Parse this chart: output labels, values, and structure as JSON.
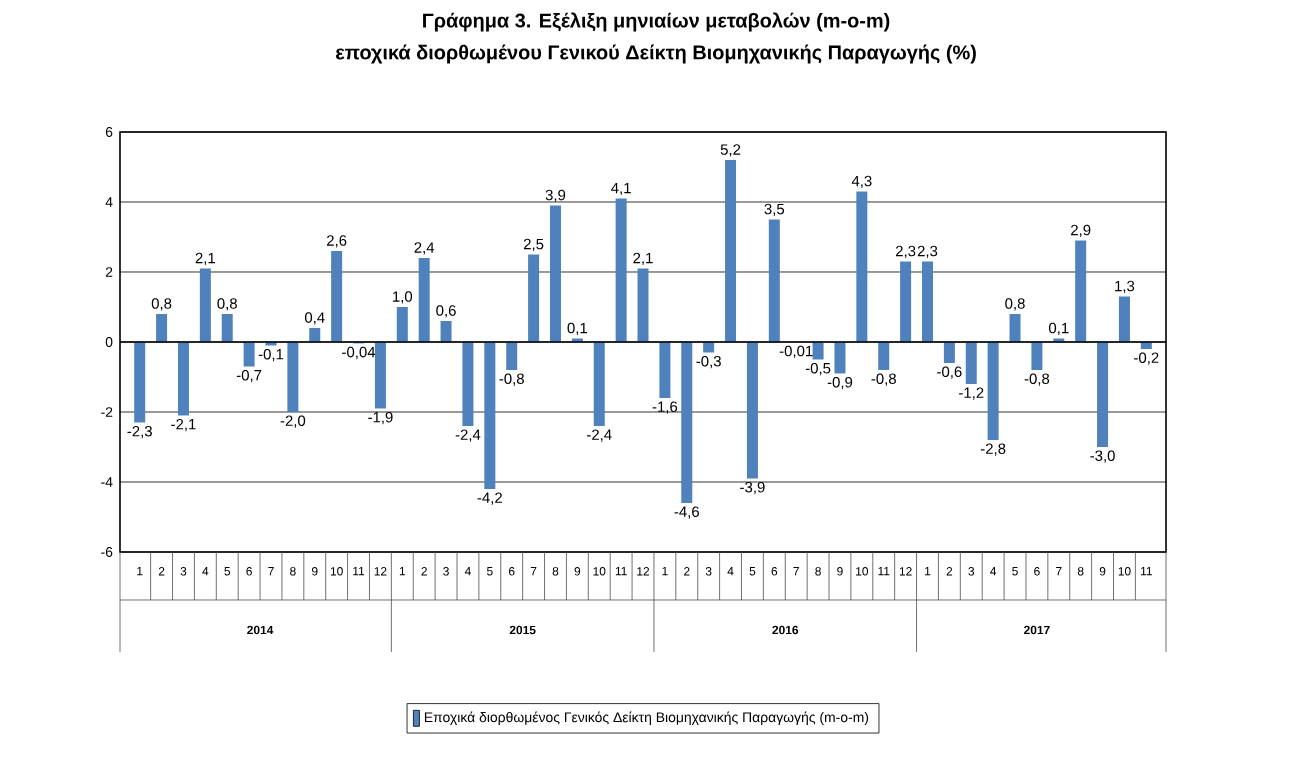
{
  "chart_data": {
    "type": "bar",
    "title": "Γράφημα 3. Εξέλιξη μηνιαίων μεταβολών (m-o-m)",
    "subtitle": "εποχικά διορθωμένου Γενικού Δείκτη Βιομηχανικής Παραγωγής (%)",
    "categories": [
      "1",
      "2",
      "3",
      "4",
      "5",
      "6",
      "7",
      "8",
      "9",
      "10",
      "11",
      "12",
      "1",
      "2",
      "3",
      "4",
      "5",
      "6",
      "7",
      "8",
      "9",
      "10",
      "11",
      "12",
      "1",
      "2",
      "3",
      "4",
      "5",
      "6",
      "7",
      "8",
      "9",
      "10",
      "11",
      "12",
      "1",
      "2",
      "3",
      "4",
      "5",
      "6",
      "7",
      "8",
      "9",
      "10",
      "11"
    ],
    "annotations": [
      "2014",
      "2015",
      "2016",
      "2017"
    ],
    "series": [
      {
        "name": "Εποχικά διορθωμένος Γενικός Δείκτη Βιομηχανικής Παραγωγής (m-o-m)",
        "color": "#4f81bd",
        "values": [
          -2.3,
          0.8,
          -2.1,
          2.1,
          0.8,
          -0.7,
          -0.1,
          -2.0,
          0.4,
          2.6,
          -0.04,
          -1.9,
          1.0,
          2.4,
          0.6,
          -2.4,
          -4.2,
          -0.8,
          2.5,
          3.9,
          0.1,
          -2.4,
          4.1,
          2.1,
          -1.6,
          -4.6,
          -0.3,
          5.2,
          -3.9,
          3.5,
          -0.01,
          -0.5,
          -0.9,
          4.3,
          -0.8,
          2.3,
          2.3,
          -0.6,
          -1.2,
          -2.8,
          0.8,
          -0.8,
          0.1,
          2.9,
          -3.0,
          1.3,
          -0.2
        ],
        "value_labels": [
          "-2,3",
          "0,8",
          "-2,1",
          "2,1",
          "0,8",
          "-0,7",
          "-0,1",
          "-2,0",
          "0,4",
          "2,6",
          "-0,04",
          "-1,9",
          "1,0",
          "2,4",
          "0,6",
          "-2,4",
          "-4,2",
          "-0,8",
          "2,5",
          "3,9",
          "0,1",
          "-2,4",
          "4,1",
          "2,1",
          "-1,6",
          "-4,6",
          "-0,3",
          "5,2",
          "-3,9",
          "3,5",
          "-0,01",
          "-0,5",
          "-0,9",
          "4,3",
          "-0,8",
          "2,3",
          "2,3",
          "-0,6",
          "-1,2",
          "-2,8",
          "0,8",
          "-0,8",
          "0,1",
          "2,9",
          "-3,0",
          "1,3",
          "-0,2"
        ]
      }
    ],
    "ylim": [
      -6,
      6
    ],
    "yticks": [
      -6,
      -4,
      -2,
      0,
      2,
      4,
      6
    ],
    "grid": "y",
    "legend": "bottom"
  }
}
